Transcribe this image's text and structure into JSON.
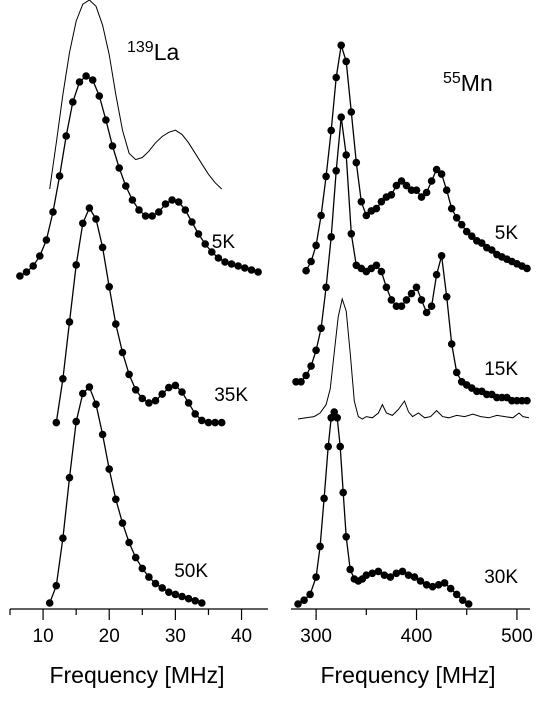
{
  "chart_data": [
    {
      "type": "line",
      "panel": "left",
      "nucleus": {
        "mass": "139",
        "symbol": "La"
      },
      "xlabel": "Frequency [MHz]",
      "ylabel": "",
      "xlim": [
        5,
        44
      ],
      "xticks": [
        10,
        20,
        30,
        40
      ],
      "y_axis_shown": false,
      "grid": false,
      "reference_curve": {
        "x": [
          11,
          12,
          13,
          14,
          15,
          16,
          17,
          18,
          19,
          20,
          21,
          22,
          23,
          24,
          25,
          26,
          27,
          28,
          29,
          30,
          31,
          32,
          33,
          34,
          35,
          36,
          37
        ],
        "y": [
          0.1,
          0.32,
          0.55,
          0.75,
          0.9,
          0.98,
          1.0,
          0.97,
          0.88,
          0.74,
          0.55,
          0.38,
          0.27,
          0.24,
          0.25,
          0.28,
          0.32,
          0.35,
          0.37,
          0.38,
          0.36,
          0.32,
          0.27,
          0.22,
          0.17,
          0.13,
          0.1
        ]
      },
      "series": [
        {
          "label": "5K",
          "x": [
            6.5,
            7.5,
            8.5,
            9.5,
            10.5,
            11.5,
            12.5,
            13.5,
            14.5,
            15.5,
            16.5,
            17.5,
            18.5,
            19.5,
            20.5,
            21.5,
            22.5,
            23.5,
            24.5,
            25.5,
            26.5,
            27.5,
            28.5,
            29.5,
            30.5,
            31.5,
            32.5,
            33.5,
            34.5,
            35.5,
            36.5,
            37.5,
            38.5,
            39.5,
            40.5,
            41.5,
            42.5
          ],
          "y": [
            0.0,
            0.02,
            0.05,
            0.1,
            0.18,
            0.32,
            0.5,
            0.7,
            0.87,
            0.97,
            1.0,
            0.98,
            0.9,
            0.78,
            0.65,
            0.54,
            0.45,
            0.38,
            0.33,
            0.3,
            0.3,
            0.32,
            0.36,
            0.38,
            0.37,
            0.33,
            0.27,
            0.21,
            0.16,
            0.12,
            0.09,
            0.07,
            0.06,
            0.05,
            0.04,
            0.03,
            0.02
          ]
        },
        {
          "label": "35K",
          "x": [
            12,
            13,
            14,
            15,
            16,
            17,
            18,
            19,
            20,
            21,
            22,
            23,
            24,
            25,
            26,
            27,
            28,
            29,
            30,
            31,
            32,
            33,
            34,
            35,
            36,
            37
          ],
          "y": [
            0.02,
            0.22,
            0.48,
            0.74,
            0.93,
            1.0,
            0.95,
            0.82,
            0.64,
            0.47,
            0.34,
            0.24,
            0.17,
            0.13,
            0.11,
            0.12,
            0.15,
            0.18,
            0.19,
            0.16,
            0.11,
            0.06,
            0.03,
            0.02,
            0.02,
            0.02
          ]
        },
        {
          "label": "50K",
          "x": [
            11,
            12,
            13,
            14,
            15,
            16,
            17,
            18,
            19,
            20,
            21,
            22,
            23,
            24,
            25,
            26,
            27,
            28,
            29,
            30,
            31,
            32,
            33,
            34
          ],
          "y": [
            0.0,
            0.08,
            0.3,
            0.58,
            0.84,
            0.97,
            1.0,
            0.92,
            0.78,
            0.62,
            0.48,
            0.37,
            0.28,
            0.21,
            0.16,
            0.12,
            0.09,
            0.07,
            0.05,
            0.04,
            0.03,
            0.02,
            0.01,
            0.0
          ]
        }
      ]
    },
    {
      "type": "line",
      "panel": "right",
      "nucleus": {
        "mass": "55",
        "symbol": "Mn"
      },
      "xlabel": "Frequency [MHz]",
      "ylabel": "",
      "xlim": [
        275,
        513
      ],
      "xticks": [
        300,
        400,
        500
      ],
      "y_axis_shown": false,
      "grid": false,
      "reference_curve": {
        "x": [
          282,
          290,
          298,
          304,
          310,
          314,
          318,
          322,
          326,
          330,
          334,
          338,
          342,
          346,
          350,
          356,
          362,
          366,
          370,
          376,
          382,
          388,
          392,
          396,
          402,
          408,
          414,
          420,
          426,
          432,
          440,
          448,
          456,
          464,
          472,
          480,
          488,
          496,
          502,
          506,
          512
        ],
        "y": [
          0.0,
          0.01,
          0.02,
          0.05,
          0.12,
          0.25,
          0.55,
          0.85,
          1.0,
          0.9,
          0.55,
          0.15,
          0.02,
          0.0,
          0.02,
          0.01,
          0.05,
          0.12,
          0.05,
          0.03,
          0.08,
          0.15,
          0.06,
          0.02,
          0.05,
          0.01,
          0.02,
          0.07,
          0.02,
          0.01,
          0.03,
          0.02,
          0.04,
          0.02,
          0.01,
          0.03,
          0.02,
          0.01,
          0.05,
          0.02,
          0.01
        ]
      },
      "series": [
        {
          "label": "5K",
          "x": [
            290,
            295,
            300,
            305,
            310,
            315,
            320,
            325,
            330,
            335,
            340,
            345,
            350,
            355,
            360,
            365,
            370,
            375,
            380,
            385,
            390,
            395,
            400,
            405,
            410,
            415,
            420,
            425,
            430,
            435,
            440,
            445,
            450,
            455,
            460,
            465,
            470,
            475,
            480,
            485,
            490,
            495,
            500,
            505,
            510
          ],
          "y": [
            0.01,
            0.05,
            0.12,
            0.25,
            0.42,
            0.62,
            0.85,
            0.99,
            0.92,
            0.7,
            0.48,
            0.31,
            0.25,
            0.27,
            0.28,
            0.31,
            0.33,
            0.34,
            0.38,
            0.4,
            0.38,
            0.36,
            0.36,
            0.33,
            0.35,
            0.4,
            0.45,
            0.43,
            0.36,
            0.28,
            0.24,
            0.21,
            0.18,
            0.16,
            0.14,
            0.13,
            0.11,
            0.1,
            0.08,
            0.07,
            0.06,
            0.05,
            0.04,
            0.03,
            0.02
          ]
        },
        {
          "label": "15K",
          "x": [
            280,
            285,
            290,
            295,
            300,
            305,
            310,
            315,
            320,
            325,
            330,
            335,
            340,
            345,
            350,
            355,
            360,
            365,
            370,
            375,
            380,
            385,
            390,
            395,
            400,
            405,
            410,
            415,
            420,
            425,
            430,
            435,
            440,
            445,
            450,
            455,
            460,
            465,
            470,
            475,
            480,
            485,
            490,
            495,
            500,
            505,
            510
          ],
          "y": [
            0.08,
            0.08,
            0.1,
            0.13,
            0.18,
            0.25,
            0.38,
            0.54,
            0.75,
            0.92,
            0.8,
            0.55,
            0.45,
            0.44,
            0.43,
            0.44,
            0.45,
            0.43,
            0.38,
            0.34,
            0.32,
            0.32,
            0.34,
            0.36,
            0.38,
            0.34,
            0.3,
            0.32,
            0.42,
            0.48,
            0.35,
            0.2,
            0.11,
            0.08,
            0.07,
            0.06,
            0.05,
            0.05,
            0.04,
            0.04,
            0.03,
            0.03,
            0.03,
            0.02,
            0.02,
            0.02,
            0.02
          ]
        },
        {
          "label": "30K",
          "x": [
            282,
            288,
            294,
            300,
            304,
            308,
            312,
            315,
            318,
            321,
            324,
            327,
            330,
            334,
            338,
            342,
            346,
            350,
            356,
            362,
            368,
            374,
            380,
            386,
            392,
            398,
            404,
            410,
            416,
            422,
            428,
            434,
            440,
            446,
            452
          ],
          "y": [
            0.0,
            0.02,
            0.05,
            0.14,
            0.3,
            0.55,
            0.82,
            0.97,
            1.0,
            0.97,
            0.82,
            0.58,
            0.35,
            0.18,
            0.13,
            0.12,
            0.13,
            0.15,
            0.16,
            0.17,
            0.15,
            0.14,
            0.16,
            0.17,
            0.15,
            0.14,
            0.12,
            0.1,
            0.09,
            0.1,
            0.11,
            0.08,
            0.05,
            0.02,
            0.0
          ]
        }
      ]
    }
  ]
}
